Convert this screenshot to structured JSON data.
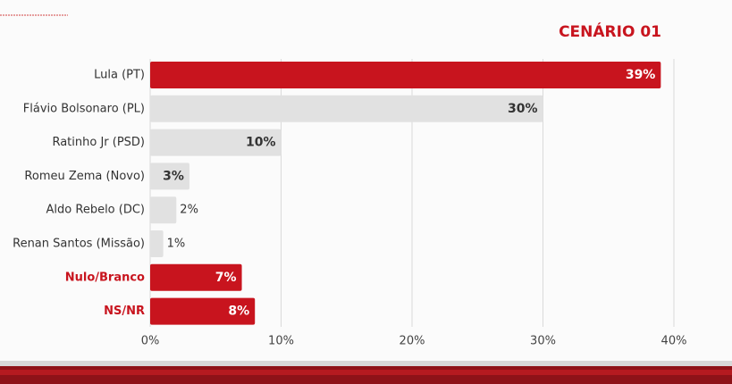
{
  "chart_data": {
    "type": "bar",
    "orientation": "horizontal",
    "title": "CENÁRIO 01",
    "categories": [
      "Lula (PT)",
      "Flávio Bolsonaro (PL)",
      "Ratinho Jr (PSD)",
      "Romeu Zema (Novo)",
      "Aldo Rebelo (DC)",
      "Renan Santos (Missão)",
      "Nulo/Branco",
      "NS/NR"
    ],
    "values": [
      39,
      30,
      10,
      3,
      2,
      1,
      7,
      8
    ],
    "value_labels": [
      "39%",
      "30%",
      "10%",
      "3%",
      "2%",
      "1%",
      "7%",
      "8%"
    ],
    "colors": [
      "#c8141e",
      "#e1e1e1",
      "#e1e1e1",
      "#e1e1e1",
      "#e1e1e1",
      "#e1e1e1",
      "#c8141e",
      "#c8141e"
    ],
    "highlight_color": "#c8141e",
    "xlim": [
      0,
      40
    ],
    "xticks": [
      {
        "value": 0,
        "label": "0%"
      },
      {
        "value": 10,
        "label": "10%"
      },
      {
        "value": 20,
        "label": "20%"
      },
      {
        "value": 30,
        "label": "30%"
      },
      {
        "value": 40,
        "label": "40%"
      }
    ],
    "grid": true
  }
}
